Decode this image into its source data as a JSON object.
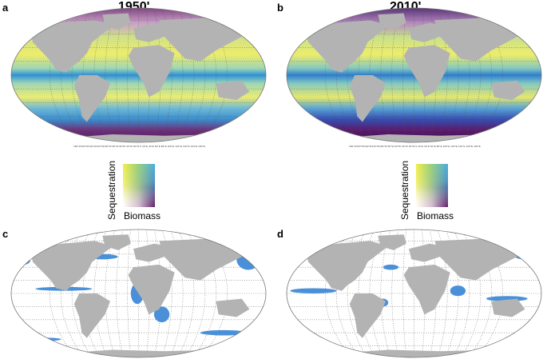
{
  "panels": [
    {
      "letter": "a",
      "title": "1950'",
      "type": "biomass-sequestration"
    },
    {
      "letter": "b",
      "title": "2010'",
      "type": "biomass-sequestration"
    },
    {
      "letter": "c",
      "title": "",
      "type": "hotspots"
    },
    {
      "letter": "d",
      "title": "",
      "type": "hotspots"
    }
  ],
  "legend": {
    "y_label": "Sequestration",
    "x_label": "Biomass",
    "colors": {
      "high_seq": "#4ab0e0",
      "low_seq": "#f2ef4a",
      "high_bio": "#5a145a",
      "low": "#ffffff"
    }
  },
  "map_colors": {
    "land": "#b3b3b3",
    "hotspot": "#4a90d9",
    "graticule": "#555555"
  },
  "axis_tick_text": "180°W160°W140°W120°W100°W 80°W 60°W 40°W 20°W   0   20°E 40°E 60°E 80°E 100°E 120°E 140°E 160°E 180°E"
}
